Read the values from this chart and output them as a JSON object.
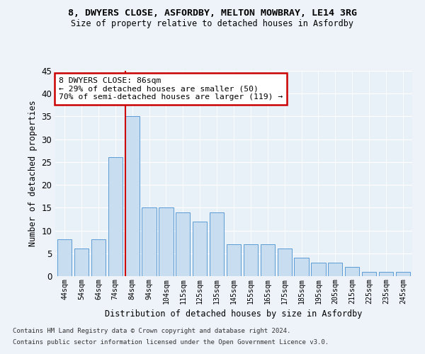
{
  "title1": "8, DWYERS CLOSE, ASFORDBY, MELTON MOWBRAY, LE14 3RG",
  "title2": "Size of property relative to detached houses in Asfordby",
  "xlabel": "Distribution of detached houses by size in Asfordby",
  "ylabel": "Number of detached properties",
  "categories": [
    "44sqm",
    "54sqm",
    "64sqm",
    "74sqm",
    "84sqm",
    "94sqm",
    "104sqm",
    "115sqm",
    "125sqm",
    "135sqm",
    "145sqm",
    "155sqm",
    "165sqm",
    "175sqm",
    "185sqm",
    "195sqm",
    "205sqm",
    "215sqm",
    "225sqm",
    "235sqm",
    "245sqm"
  ],
  "values": [
    8,
    6,
    8,
    26,
    35,
    15,
    15,
    14,
    12,
    14,
    7,
    7,
    7,
    6,
    4,
    3,
    3,
    2,
    1,
    1,
    1
  ],
  "bar_color": "#c9ddf0",
  "bar_edge_color": "#5b9bd5",
  "highlight_index": 4,
  "highlight_line_color": "#cc0000",
  "ylim": [
    0,
    45
  ],
  "yticks": [
    0,
    5,
    10,
    15,
    20,
    25,
    30,
    35,
    40,
    45
  ],
  "annotation_text": "8 DWYERS CLOSE: 86sqm\n← 29% of detached houses are smaller (50)\n70% of semi-detached houses are larger (119) →",
  "annotation_box_color": "#cc0000",
  "footnote1": "Contains HM Land Registry data © Crown copyright and database right 2024.",
  "footnote2": "Contains public sector information licensed under the Open Government Licence v3.0.",
  "bg_color": "#eef3fa",
  "plot_bg_color": "#e8f0f8"
}
